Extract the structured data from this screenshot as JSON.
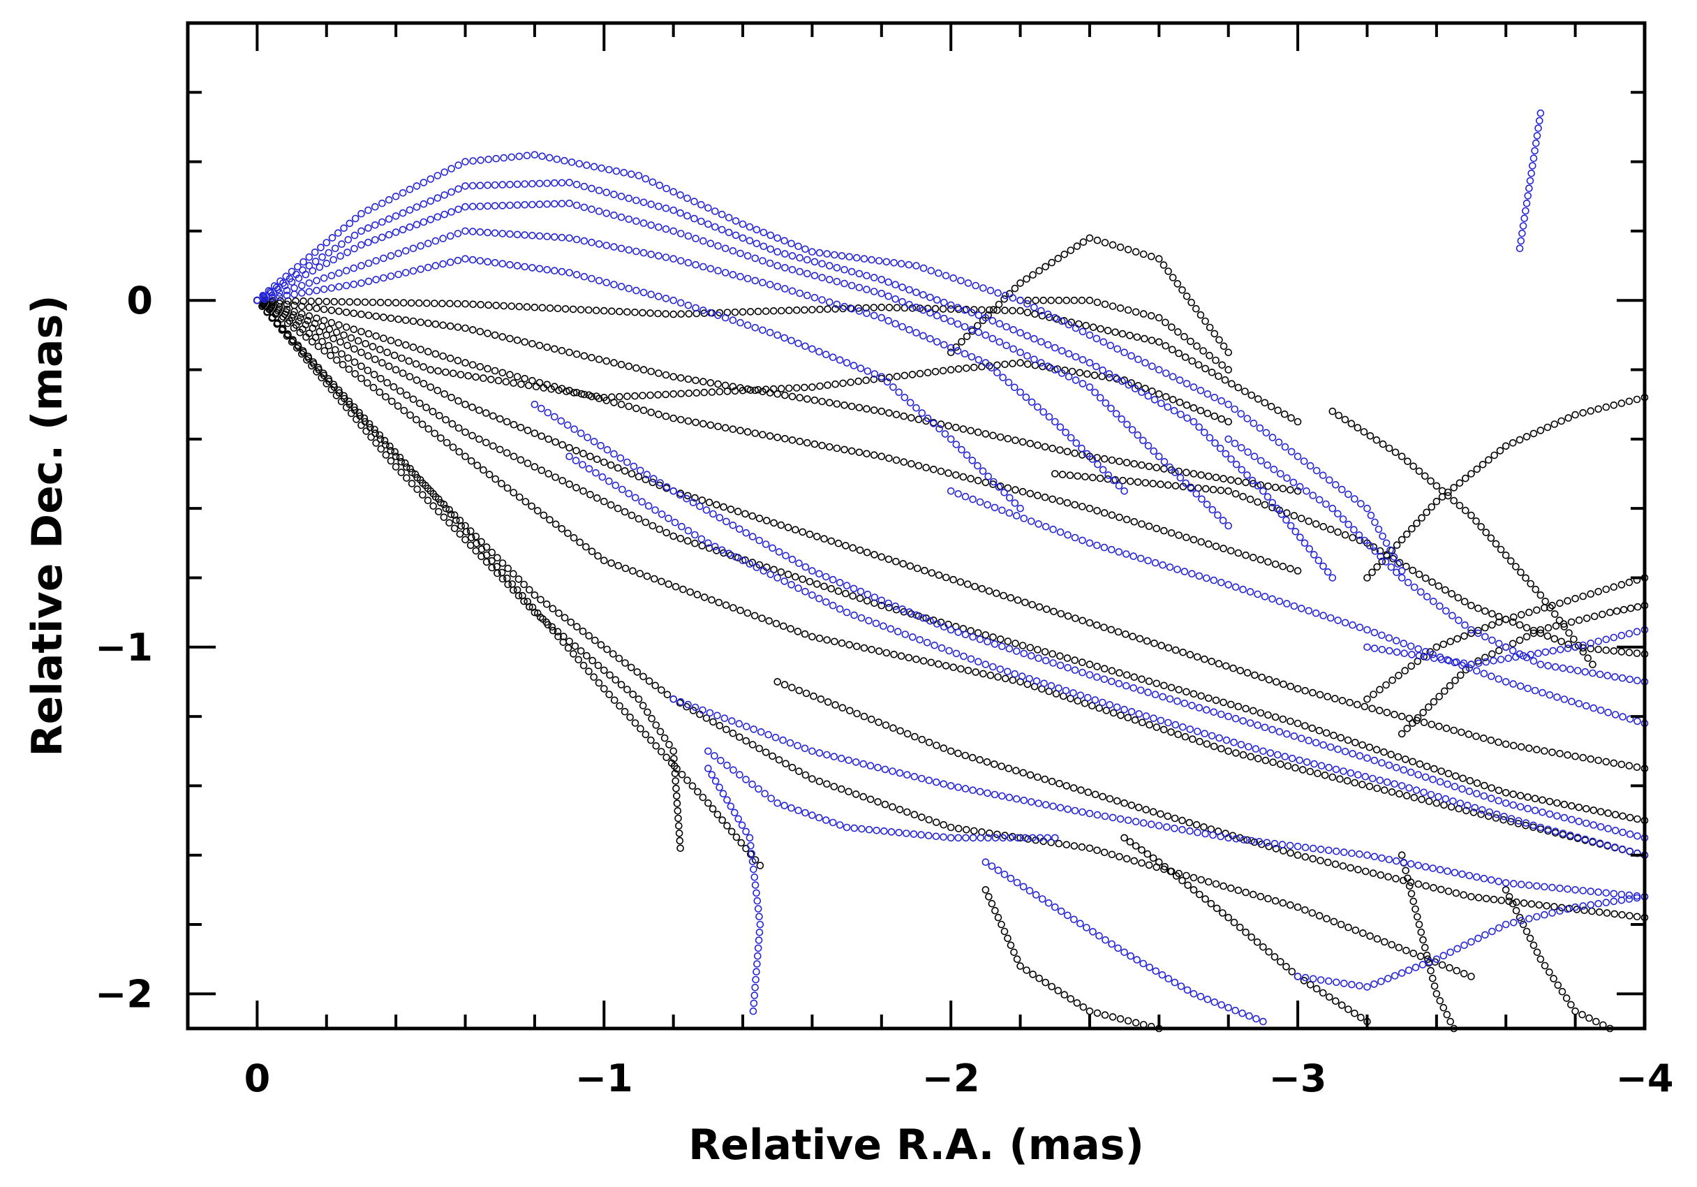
{
  "chart_data": {
    "type": "scatter",
    "title": "",
    "xlabel": "Relative R.A. (mas)",
    "ylabel": "Relative Dec. (mas)",
    "xlim": [
      0.2,
      -4.0
    ],
    "ylim": [
      -2.1,
      0.8
    ],
    "x_ticks": [
      {
        "value": 0,
        "label": "0"
      },
      {
        "value": -1,
        "label": "−1"
      },
      {
        "value": -2,
        "label": "−2"
      },
      {
        "value": -3,
        "label": "−3"
      },
      {
        "value": -4,
        "label": "−4"
      }
    ],
    "y_ticks": [
      {
        "value": 0,
        "label": "0"
      },
      {
        "value": -1,
        "label": "−1"
      },
      {
        "value": -2,
        "label": "−2"
      }
    ],
    "x_minor_step": 0.2,
    "y_minor_step": 0.2,
    "grid": false,
    "marker": "open-circle",
    "series": [
      {
        "color": "#000000",
        "tracks": [
          [
            [
              0,
              0
            ],
            [
              -0.6,
              -0.01
            ],
            [
              -1.2,
              -0.04
            ],
            [
              -1.8,
              -0.02
            ],
            [
              -2.2,
              -0.03
            ],
            [
              -2.6,
              -0.12
            ],
            [
              -3.0,
              -0.35
            ]
          ],
          [
            [
              0,
              0
            ],
            [
              -0.6,
              -0.08
            ],
            [
              -1.2,
              -0.22
            ],
            [
              -1.8,
              -0.32
            ],
            [
              -2.4,
              -0.45
            ],
            [
              -3.0,
              -0.55
            ]
          ],
          [
            [
              0,
              0
            ],
            [
              -0.6,
              -0.18
            ],
            [
              -1.2,
              -0.34
            ],
            [
              -1.8,
              -0.45
            ],
            [
              -2.4,
              -0.6
            ],
            [
              -3.0,
              -0.78
            ]
          ],
          [
            [
              0,
              0
            ],
            [
              -0.6,
              -0.3
            ],
            [
              -1.2,
              -0.55
            ],
            [
              -1.8,
              -0.74
            ],
            [
              -2.4,
              -0.93
            ],
            [
              -3.0,
              -1.12
            ],
            [
              -3.6,
              -1.28
            ],
            [
              -4.0,
              -1.35
            ]
          ],
          [
            [
              0,
              0
            ],
            [
              -0.6,
              -0.38
            ],
            [
              -1.2,
              -0.68
            ],
            [
              -1.8,
              -0.88
            ],
            [
              -2.4,
              -1.05
            ],
            [
              -3.0,
              -1.22
            ],
            [
              -3.6,
              -1.42
            ],
            [
              -4.0,
              -1.5
            ]
          ],
          [
            [
              0,
              0
            ],
            [
              -0.6,
              -0.45
            ],
            [
              -1.0,
              -0.75
            ],
            [
              -1.6,
              -0.97
            ],
            [
              -2.2,
              -1.1
            ],
            [
              -2.8,
              -1.3
            ],
            [
              -3.4,
              -1.45
            ],
            [
              -4.0,
              -1.6
            ]
          ],
          [
            [
              0,
              0
            ],
            [
              -0.4,
              -0.45
            ],
            [
              -0.8,
              -0.85
            ],
            [
              -1.2,
              -1.15
            ],
            [
              -1.6,
              -1.38
            ],
            [
              -2.0,
              -1.52
            ],
            [
              -2.4,
              -1.58
            ],
            [
              -3.0,
              -1.75
            ],
            [
              -3.5,
              -1.95
            ]
          ],
          [
            [
              0,
              0
            ],
            [
              -0.4,
              -0.48
            ],
            [
              -0.8,
              -0.9
            ],
            [
              -1.1,
              -1.15
            ],
            [
              -1.2,
              -1.3
            ],
            [
              -1.22,
              -1.58
            ]
          ],
          [
            [
              0,
              0
            ],
            [
              -0.5,
              -0.55
            ],
            [
              -1.0,
              -1.12
            ],
            [
              -1.3,
              -1.45
            ],
            [
              -1.45,
              -1.63
            ]
          ],
          [
            [
              0,
              0
            ],
            [
              -0.5,
              -0.2
            ],
            [
              -1.0,
              -0.28
            ],
            [
              -1.6,
              -0.25
            ],
            [
              -2.0,
              -0.2
            ],
            [
              -2.2,
              -0.18
            ],
            [
              -2.5,
              -0.23
            ],
            [
              -2.8,
              -0.35
            ]
          ],
          [
            [
              -2.0,
              -0.15
            ],
            [
              -2.2,
              0.05
            ],
            [
              -2.4,
              0.18
            ],
            [
              -2.6,
              0.12
            ],
            [
              -2.8,
              -0.15
            ]
          ],
          [
            [
              -2.2,
              0.0
            ],
            [
              -2.4,
              0.0
            ],
            [
              -2.6,
              -0.05
            ],
            [
              -2.8,
              -0.2
            ]
          ],
          [
            [
              -3.1,
              -0.32
            ],
            [
              -3.3,
              -0.45
            ],
            [
              -3.5,
              -0.62
            ],
            [
              -3.7,
              -0.85
            ],
            [
              -3.85,
              -1.05
            ]
          ],
          [
            [
              -3.2,
              -0.8
            ],
            [
              -3.4,
              -0.58
            ],
            [
              -3.6,
              -0.42
            ],
            [
              -3.8,
              -0.33
            ],
            [
              -4.0,
              -0.28
            ]
          ],
          [
            [
              -3.2,
              -1.15
            ],
            [
              -3.4,
              -1.0
            ],
            [
              -3.6,
              -0.92
            ],
            [
              -3.8,
              -0.86
            ],
            [
              -4.0,
              -0.8
            ]
          ],
          [
            [
              -3.3,
              -1.25
            ],
            [
              -3.5,
              -1.05
            ],
            [
              -3.7,
              -0.95
            ],
            [
              -3.9,
              -0.9
            ],
            [
              -4.0,
              -0.88
            ]
          ],
          [
            [
              -2.1,
              -1.7
            ],
            [
              -2.2,
              -1.92
            ],
            [
              -2.4,
              -2.05
            ],
            [
              -2.6,
              -2.1
            ]
          ],
          [
            [
              -2.5,
              -1.55
            ],
            [
              -2.6,
              -1.62
            ],
            [
              -2.8,
              -1.78
            ],
            [
              -3.0,
              -1.95
            ],
            [
              -3.2,
              -2.08
            ]
          ],
          [
            [
              -3.3,
              -1.6
            ],
            [
              -3.35,
              -1.8
            ],
            [
              -3.4,
              -2.0
            ],
            [
              -3.45,
              -2.1
            ]
          ],
          [
            [
              -3.6,
              -1.7
            ],
            [
              -3.7,
              -1.9
            ],
            [
              -3.8,
              -2.05
            ],
            [
              -3.9,
              -2.1
            ]
          ],
          [
            [
              -2.3,
              -0.5
            ],
            [
              -2.8,
              -0.55
            ],
            [
              -3.2,
              -0.7
            ],
            [
              -3.5,
              -0.88
            ],
            [
              -3.8,
              -1.0
            ],
            [
              -4.0,
              -1.02
            ]
          ],
          [
            [
              -1.5,
              -1.1
            ],
            [
              -2.0,
              -1.3
            ],
            [
              -2.5,
              -1.45
            ],
            [
              -3.0,
              -1.6
            ],
            [
              -3.5,
              -1.72
            ],
            [
              -4.0,
              -1.78
            ]
          ]
        ]
      },
      {
        "color": "#2323d8",
        "tracks": [
          [
            [
              0,
              0
            ],
            [
              -0.3,
              0.25
            ],
            [
              -0.6,
              0.4
            ],
            [
              -0.8,
              0.42
            ],
            [
              -1.1,
              0.36
            ],
            [
              -1.4,
              0.22
            ],
            [
              -1.6,
              0.14
            ],
            [
              -1.9,
              0.1
            ],
            [
              -2.2,
              0.0
            ],
            [
              -2.5,
              -0.15
            ],
            [
              -2.8,
              -0.3
            ],
            [
              -3.0,
              -0.45
            ],
            [
              -3.2,
              -0.6
            ],
            [
              -3.3,
              -0.78
            ]
          ],
          [
            [
              0,
              0
            ],
            [
              -0.3,
              0.2
            ],
            [
              -0.6,
              0.33
            ],
            [
              -0.9,
              0.34
            ],
            [
              -1.2,
              0.26
            ],
            [
              -1.5,
              0.14
            ],
            [
              -1.8,
              0.06
            ],
            [
              -2.1,
              -0.05
            ],
            [
              -2.4,
              -0.18
            ],
            [
              -2.7,
              -0.35
            ],
            [
              -2.9,
              -0.55
            ],
            [
              -3.1,
              -0.8
            ]
          ],
          [
            [
              0,
              0
            ],
            [
              -0.3,
              0.16
            ],
            [
              -0.6,
              0.27
            ],
            [
              -0.9,
              0.28
            ],
            [
              -1.2,
              0.2
            ],
            [
              -1.5,
              0.1
            ],
            [
              -1.8,
              0.02
            ],
            [
              -2.1,
              -0.1
            ],
            [
              -2.4,
              -0.25
            ],
            [
              -2.6,
              -0.45
            ],
            [
              -2.8,
              -0.65
            ]
          ],
          [
            [
              0,
              0
            ],
            [
              -0.3,
              0.1
            ],
            [
              -0.6,
              0.2
            ],
            [
              -0.9,
              0.18
            ],
            [
              -1.2,
              0.12
            ],
            [
              -1.5,
              0.04
            ],
            [
              -1.8,
              -0.05
            ],
            [
              -2.1,
              -0.18
            ],
            [
              -2.3,
              -0.35
            ],
            [
              -2.5,
              -0.55
            ]
          ],
          [
            [
              0,
              0
            ],
            [
              -0.3,
              0.05
            ],
            [
              -0.6,
              0.12
            ],
            [
              -0.9,
              0.08
            ],
            [
              -1.2,
              0.0
            ],
            [
              -1.5,
              -0.1
            ],
            [
              -1.8,
              -0.22
            ],
            [
              -2.0,
              -0.4
            ],
            [
              -2.2,
              -0.6
            ]
          ],
          [
            [
              -0.8,
              -0.3
            ],
            [
              -1.2,
              -0.55
            ],
            [
              -1.6,
              -0.78
            ],
            [
              -2.0,
              -0.95
            ],
            [
              -2.4,
              -1.08
            ],
            [
              -2.8,
              -1.2
            ],
            [
              -3.2,
              -1.32
            ],
            [
              -3.6,
              -1.45
            ],
            [
              -4.0,
              -1.55
            ]
          ],
          [
            [
              -0.9,
              -0.45
            ],
            [
              -1.3,
              -0.7
            ],
            [
              -1.7,
              -0.9
            ],
            [
              -2.1,
              -1.05
            ],
            [
              -2.5,
              -1.18
            ],
            [
              -2.9,
              -1.3
            ],
            [
              -3.3,
              -1.4
            ],
            [
              -3.7,
              -1.52
            ],
            [
              -4.0,
              -1.6
            ]
          ],
          [
            [
              -1.2,
              -1.15
            ],
            [
              -1.6,
              -1.3
            ],
            [
              -2.0,
              -1.4
            ],
            [
              -2.4,
              -1.48
            ],
            [
              -2.8,
              -1.55
            ],
            [
              -3.2,
              -1.6
            ],
            [
              -3.6,
              -1.68
            ],
            [
              -4.0,
              -1.72
            ]
          ],
          [
            [
              -1.3,
              -1.3
            ],
            [
              -1.5,
              -1.45
            ],
            [
              -1.7,
              -1.52
            ],
            [
              -2.0,
              -1.55
            ],
            [
              -2.3,
              -1.55
            ]
          ],
          [
            [
              -1.3,
              -1.35
            ],
            [
              -1.42,
              -1.55
            ],
            [
              -1.45,
              -1.8
            ],
            [
              -1.43,
              -2.05
            ]
          ],
          [
            [
              -2.1,
              -1.62
            ],
            [
              -2.3,
              -1.75
            ],
            [
              -2.5,
              -1.88
            ],
            [
              -2.7,
              -2.0
            ],
            [
              -2.9,
              -2.08
            ]
          ],
          [
            [
              -3.0,
              -1.95
            ],
            [
              -3.2,
              -1.98
            ],
            [
              -3.4,
              -1.9
            ],
            [
              -3.6,
              -1.8
            ],
            [
              -3.8,
              -1.75
            ],
            [
              -4.0,
              -1.72
            ]
          ],
          [
            [
              -2.8,
              -0.4
            ],
            [
              -3.1,
              -0.6
            ],
            [
              -3.3,
              -0.8
            ],
            [
              -3.5,
              -0.95
            ],
            [
              -3.7,
              -1.05
            ],
            [
              -4.0,
              -1.1
            ]
          ],
          [
            [
              -3.2,
              -1.0
            ],
            [
              -3.5,
              -1.05
            ],
            [
              -3.8,
              -1.0
            ],
            [
              -4.0,
              -0.95
            ]
          ],
          [
            [
              -2.0,
              -0.55
            ],
            [
              -2.4,
              -0.7
            ],
            [
              -2.8,
              -0.82
            ],
            [
              -3.2,
              -0.95
            ],
            [
              -3.6,
              -1.1
            ],
            [
              -4.0,
              -1.22
            ]
          ],
          [
            [
              -3.64,
              0.15
            ],
            [
              -3.66,
              0.28
            ],
            [
              -3.68,
              0.41
            ],
            [
              -3.7,
              0.54
            ]
          ]
        ]
      }
    ]
  }
}
